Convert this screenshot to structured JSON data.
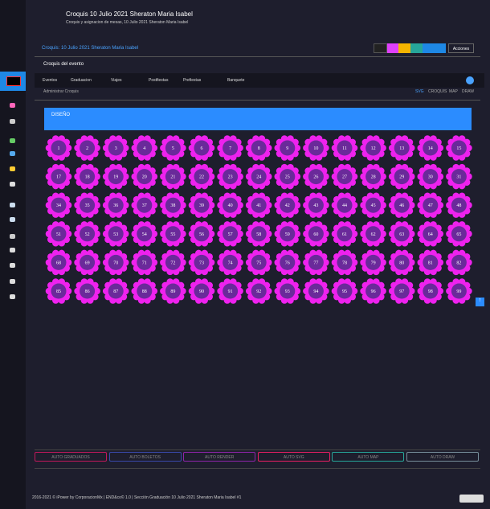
{
  "header": {
    "title": "Croquis 10 Julio 2021 Sheraton Maria Isabel",
    "subtitle": "Croquis y asignacion de mesas, 10 Julio 2021 Sheraton Maria Isabel"
  },
  "breadcrumb": "Croquis: 10 Julio 2021 Sheraton Maria Isabel",
  "actions": "Acciones",
  "section": "Croquis del evento",
  "nav": [
    "Eventos",
    "Graduacion",
    "Viajes",
    "Postfiestas",
    "Prefiestas",
    "Banquete"
  ],
  "subheader": "Administrar Croquis",
  "tabs": [
    "SVG",
    "CROQUIS",
    "MAP",
    "DRAW"
  ],
  "banner": "DISEÑO",
  "tables": [
    [
      1,
      2,
      3,
      4,
      5,
      6,
      7,
      8,
      9,
      10,
      11,
      12,
      13,
      14,
      15
    ],
    [
      17,
      18,
      19,
      20,
      21,
      22,
      23,
      24,
      25,
      26,
      27,
      28,
      29,
      30,
      31
    ],
    [
      34,
      35,
      36,
      37,
      38,
      39,
      40,
      41,
      42,
      43,
      44,
      45,
      46,
      47,
      48
    ],
    [
      51,
      52,
      53,
      54,
      55,
      56,
      57,
      58,
      59,
      60,
      61,
      62,
      63,
      64,
      65
    ],
    [
      68,
      69,
      70,
      71,
      72,
      73,
      74,
      75,
      76,
      77,
      78,
      79,
      80,
      81,
      82
    ],
    [
      85,
      86,
      87,
      88,
      89,
      90,
      91,
      92,
      93,
      94,
      95,
      96,
      97,
      98,
      99
    ]
  ],
  "buttons": [
    "AUTO GRADUADOS",
    "AUTO BOLETOS",
    "AUTO RENDER",
    "AUTO SVG",
    "AUTO MAP",
    "AUTO DRAW"
  ],
  "footer": "2016-2021 © iPower by CorporacionMx | END&co© 1.0 | Sección Graduación 10 Julio 2021 Sheraton Maria Isabel #1"
}
